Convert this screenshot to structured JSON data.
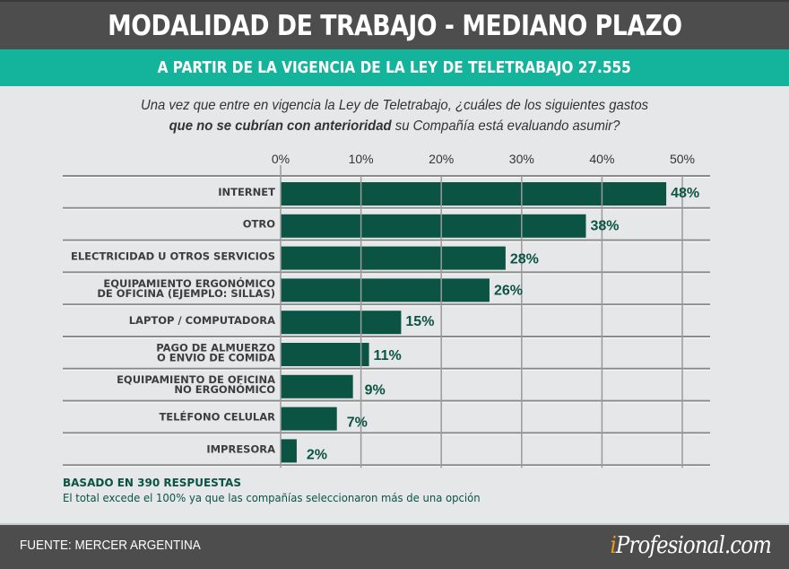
{
  "header": {
    "title": "MODALIDAD DE TRABAJO - MEDIANO PLAZO",
    "subtitle": "A PARTIR DE LA VIGENCIA DE LA LEY DE TELETRABAJO 27.555"
  },
  "question": {
    "line1": "Una vez que entre en vigencia la Ley de Teletrabajo, ¿cuáles de los siguientes gastos",
    "line2_bold": "que no se cubrían con anterioridad",
    "line2_rest": " su Compañía está evaluando asumir?"
  },
  "colors": {
    "bar": "#0b5444",
    "title_band": "#4d4d4d",
    "subtitle_band": "#13b39c",
    "background": "#e6e7e8",
    "logo_accent": "#f39a1e"
  },
  "chart_data": {
    "type": "bar",
    "orientation": "horizontal",
    "title": "¿Cuáles de los siguientes gastos que no se cubrían con anterioridad su Compañía está evaluando asumir?",
    "xlabel": "",
    "ylabel": "",
    "xlim": [
      0,
      50
    ],
    "ticks": [
      0,
      10,
      20,
      30,
      40,
      50
    ],
    "tick_labels": [
      "0%",
      "10%",
      "20%",
      "30%",
      "40%",
      "50%"
    ],
    "grid": true,
    "categories": [
      [
        "INTERNET"
      ],
      [
        "OTRO"
      ],
      [
        "ELECTRICIDAD U OTROS SERVICIOS"
      ],
      [
        "EQUIPAMIENTO ERGONÓMICO",
        "DE OFICINA (EJEMPLO: SILLAS)"
      ],
      [
        "LAPTOP / COMPUTADORA"
      ],
      [
        "PAGO DE ALMUERZO",
        "O ENVIO DE COMIDA"
      ],
      [
        "EQUIPAMIENTO DE OFICINA",
        "NO ERGONÓMICO"
      ],
      [
        "TELÉFONO CELULAR"
      ],
      [
        "IMPRESORA"
      ]
    ],
    "values": [
      48,
      38,
      28,
      26,
      15,
      11,
      9,
      7,
      2
    ],
    "value_labels": [
      "48%",
      "38%",
      "28%",
      "26%",
      "15%",
      "11%",
      "9%",
      "7%",
      "2%"
    ],
    "unit": "%"
  },
  "notes": {
    "base": "BASADO EN 390 RESPUESTAS",
    "disclaimer": "El total excede el 100% ya que las compañías seleccionaron más de una opción"
  },
  "footer": {
    "source": "FUENTE:  MERCER ARGENTINA",
    "logo_i": "i",
    "logo_rest": "Profesional.com"
  }
}
